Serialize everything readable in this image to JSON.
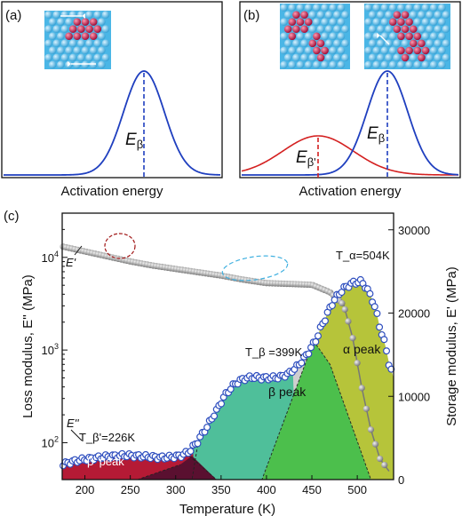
{
  "panels": {
    "a": {
      "label": "(a)",
      "xlabel": "Activation energy",
      "peak_label": "E",
      "peak_sub": "β"
    },
    "b": {
      "label": "(b)",
      "xlabel": "Activation energy",
      "peak_label": "E",
      "peak_sub": "β",
      "peak2_label": "E",
      "peak2_sub": "β'"
    },
    "c": {
      "label": "(c)"
    }
  },
  "colors": {
    "blue_curve": "#1f3fbf",
    "red_curve": "#d42020",
    "alpha_fill": "#b6c43a",
    "beta_fill": "#4fbf9a",
    "betap_fill": "#b51a35",
    "green_fill": "#4cbf4c",
    "marker_edge": "#2f4fbf"
  },
  "chart_data": [
    {
      "type": "line",
      "panel": "a",
      "xlabel": "Activation energy",
      "series": [
        {
          "name": "E_β distribution",
          "x": [
            0,
            0.1,
            0.2,
            0.3,
            0.4,
            0.45,
            0.5,
            0.55,
            0.6,
            0.7,
            0.8,
            0.9,
            1.0
          ],
          "values": [
            0,
            0,
            0.005,
            0.08,
            0.45,
            0.8,
            1.0,
            0.8,
            0.45,
            0.08,
            0.005,
            0,
            0
          ]
        }
      ]
    },
    {
      "type": "line",
      "panel": "b",
      "xlabel": "Activation energy",
      "series": [
        {
          "name": "E_β distribution",
          "x": [
            0,
            0.2,
            0.4,
            0.5,
            0.55,
            0.6,
            0.65,
            0.7,
            0.8,
            1.0
          ],
          "values": [
            0,
            0,
            0.03,
            0.35,
            0.75,
            1.0,
            0.75,
            0.35,
            0.03,
            0
          ]
        },
        {
          "name": "E_β' distribution",
          "x": [
            0,
            0.1,
            0.2,
            0.3,
            0.4,
            0.5,
            0.6,
            0.7,
            0.8,
            1.0
          ],
          "values": [
            0.02,
            0.1,
            0.3,
            0.45,
            0.45,
            0.3,
            0.12,
            0.03,
            0.005,
            0
          ]
        }
      ]
    },
    {
      "type": "scatter",
      "panel": "c",
      "xlabel": "Temperature (K)",
      "ylabel": "Loss modulus, E'' (MPa)",
      "y2label": "Storage modulus, E' (MPa)",
      "xlim": [
        175,
        540
      ],
      "ylim": [
        40,
        30000
      ],
      "y_log": true,
      "y2lim": [
        0,
        32000
      ],
      "xticks": [
        200,
        250,
        300,
        350,
        400,
        450,
        500
      ],
      "yticks": [
        "10^2",
        "10^3",
        "10^4"
      ],
      "y2ticks": [
        0,
        10000,
        20000,
        30000
      ],
      "annotations": [
        {
          "text": "T_β'=226K"
        },
        {
          "text": "T_β =399K"
        },
        {
          "text": "T_α=504K"
        },
        {
          "text": "E''"
        },
        {
          "text": "E'"
        },
        {
          "text": "β' peak"
        },
        {
          "text": "β peak"
        },
        {
          "text": "α peak"
        }
      ],
      "series": [
        {
          "name": "E''",
          "axis": "left",
          "x": [
            175,
            185,
            195,
            205,
            215,
            225,
            235,
            245,
            255,
            265,
            275,
            285,
            295,
            305,
            315,
            325,
            335,
            345,
            355,
            365,
            375,
            385,
            395,
            405,
            415,
            425,
            435,
            445,
            455,
            465,
            475,
            485,
            495,
            505,
            515,
            525,
            535,
            540
          ],
          "values": [
            58,
            62,
            65,
            67,
            69,
            71,
            72,
            73,
            72,
            71,
            70,
            69,
            70,
            72,
            80,
            105,
            150,
            220,
            330,
            430,
            490,
            510,
            500,
            500,
            510,
            560,
            680,
            900,
            1300,
            2200,
            3500,
            4600,
            5300,
            5500,
            3800,
            1700,
            700,
            500
          ]
        },
        {
          "name": "E'",
          "axis": "right",
          "x": [
            175,
            200,
            225,
            250,
            275,
            300,
            325,
            350,
            375,
            400,
            425,
            450,
            470,
            485,
            495,
            505,
            515,
            525,
            535
          ],
          "values": [
            28000,
            27400,
            26800,
            26200,
            25700,
            25300,
            24900,
            24500,
            24000,
            23600,
            23500,
            23400,
            22500,
            21000,
            17000,
            11000,
            6000,
            2500,
            1000
          ]
        }
      ]
    }
  ]
}
